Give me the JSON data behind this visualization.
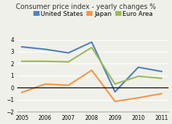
{
  "title": "Consumer price index - yearly changes %",
  "years": [
    2005,
    2006,
    2007,
    2008,
    2009,
    2010,
    2011
  ],
  "us_data": [
    3.4,
    3.2,
    2.9,
    3.8,
    -0.35,
    1.7,
    1.35
  ],
  "japan_data": [
    -0.4,
    0.3,
    0.2,
    1.45,
    -1.15,
    -0.85,
    -0.5
  ],
  "euro_data": [
    2.2,
    2.2,
    2.15,
    3.35,
    0.3,
    0.95,
    0.78
  ],
  "us_color": "#4F81BD",
  "japan_color": "#F79646",
  "euro_color": "#9BBB59",
  "ylim": [
    -2,
    4
  ],
  "yticks": [
    -2,
    -1,
    0,
    1,
    2,
    3,
    4
  ],
  "bg_color": "#F0F0EA",
  "grid_color": "#FFFFFF",
  "zero_line_color": "#000000",
  "legend_labels": [
    "United States",
    "Japan",
    "Euro Area"
  ],
  "title_fontsize": 7.0,
  "legend_fontsize": 6.5,
  "tick_fontsize": 5.5,
  "line_width": 1.6
}
